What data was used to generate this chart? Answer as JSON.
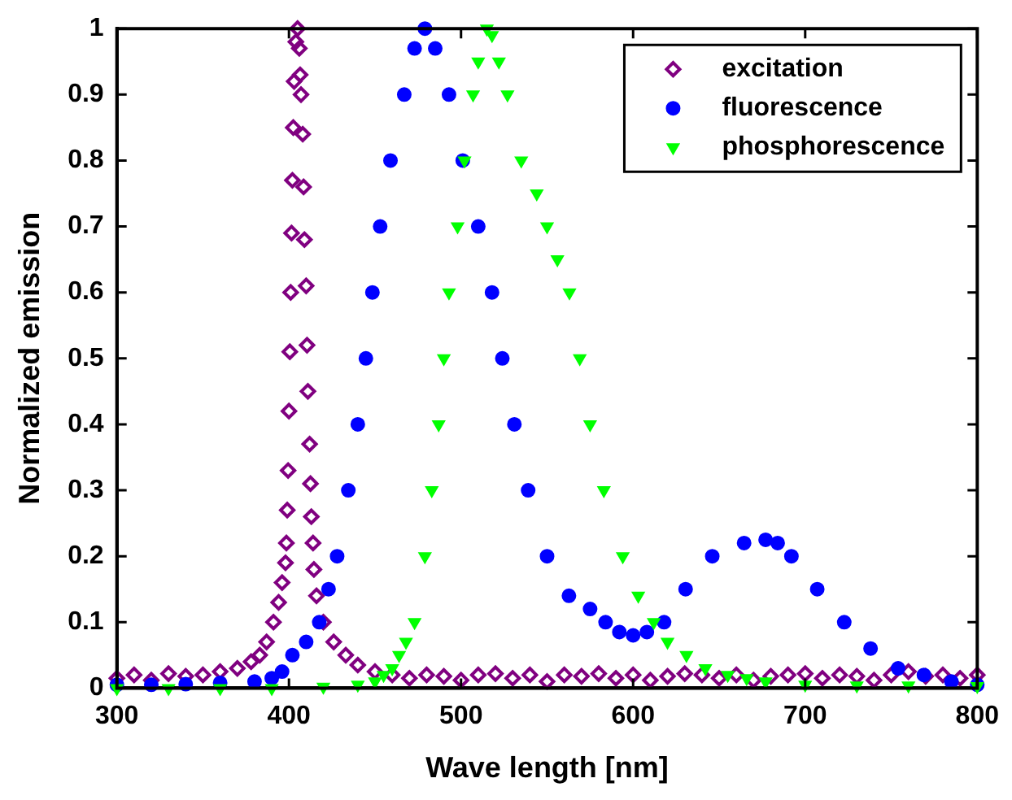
{
  "chart_data": {
    "type": "scatter",
    "xlabel": "Wave length [nm]",
    "ylabel": "Normalized emission",
    "xlim": [
      300,
      800
    ],
    "xticks": [
      300,
      400,
      500,
      600,
      700,
      800
    ],
    "ylim": [
      0,
      1
    ],
    "yticks": [
      0,
      0.1,
      0.2,
      0.3,
      0.4,
      0.5,
      0.6,
      0.7,
      0.8,
      0.9,
      1
    ],
    "grid": false,
    "legend": "top right",
    "series": [
      {
        "name": "excitation",
        "color": "#800080",
        "marker": "diamond",
        "x": [
          300,
          310,
          320,
          330,
          340,
          350,
          360,
          370,
          378,
          383,
          387,
          391,
          394,
          396,
          398,
          398.5,
          399,
          399.5,
          400,
          400.5,
          401,
          401.5,
          402,
          402.5,
          403,
          404,
          405,
          406,
          406.5,
          407,
          408,
          408.5,
          409,
          410,
          410.5,
          411,
          412,
          412.5,
          413,
          414,
          414.5,
          416,
          420,
          426,
          433,
          440,
          450,
          460,
          470,
          480,
          490,
          500,
          510,
          520,
          530,
          540,
          550,
          560,
          570,
          580,
          590,
          600,
          610,
          620,
          630,
          640,
          650,
          660,
          670,
          680,
          690,
          700,
          710,
          720,
          730,
          740,
          750,
          760,
          770,
          780,
          790,
          800
        ],
        "values": [
          0.015,
          0.02,
          0.012,
          0.022,
          0.018,
          0.02,
          0.025,
          0.03,
          0.04,
          0.05,
          0.07,
          0.1,
          0.13,
          0.16,
          0.19,
          0.22,
          0.27,
          0.33,
          0.42,
          0.51,
          0.6,
          0.69,
          0.77,
          0.85,
          0.92,
          0.98,
          1.0,
          0.97,
          0.93,
          0.9,
          0.84,
          0.76,
          0.68,
          0.61,
          0.52,
          0.45,
          0.37,
          0.31,
          0.26,
          0.22,
          0.18,
          0.14,
          0.1,
          0.07,
          0.05,
          0.035,
          0.025,
          0.02,
          0.015,
          0.02,
          0.018,
          0.012,
          0.02,
          0.022,
          0.015,
          0.02,
          0.01,
          0.02,
          0.018,
          0.022,
          0.015,
          0.02,
          0.012,
          0.018,
          0.022,
          0.02,
          0.015,
          0.02,
          0.012,
          0.018,
          0.02,
          0.022,
          0.015,
          0.02,
          0.018,
          0.012,
          0.02,
          0.025,
          0.018,
          0.02,
          0.015,
          0.02
        ]
      },
      {
        "name": "fluorescence",
        "color": "#0000ff",
        "marker": "circle",
        "x": [
          300,
          320,
          340,
          360,
          380,
          390,
          396,
          402,
          410,
          417.6,
          423,
          428,
          434.5,
          440,
          444.7,
          448.5,
          453,
          459,
          467,
          473,
          479,
          485,
          493,
          501,
          510,
          518,
          524,
          531,
          539,
          550,
          562.7,
          575,
          584,
          592,
          600,
          608,
          618,
          630.5,
          646,
          664.5,
          677,
          684,
          692,
          707,
          722.7,
          738,
          754,
          769,
          785,
          800
        ],
        "values": [
          0.005,
          0.005,
          0.006,
          0.008,
          0.01,
          0.015,
          0.025,
          0.05,
          0.07,
          0.1,
          0.15,
          0.2,
          0.3,
          0.4,
          0.5,
          0.6,
          0.7,
          0.8,
          0.9,
          0.97,
          1.0,
          0.97,
          0.9,
          0.8,
          0.7,
          0.6,
          0.5,
          0.4,
          0.3,
          0.2,
          0.14,
          0.12,
          0.1,
          0.085,
          0.08,
          0.085,
          0.1,
          0.15,
          0.2,
          0.22,
          0.225,
          0.22,
          0.2,
          0.15,
          0.1,
          0.06,
          0.03,
          0.02,
          0.01,
          0.005
        ]
      },
      {
        "name": "phosphorescence",
        "color": "#00ff00",
        "marker": "triangle",
        "x": [
          300,
          330,
          360,
          390,
          420,
          440,
          450,
          455,
          460,
          464,
          468,
          473,
          479,
          483,
          487,
          490,
          493,
          498,
          502,
          507,
          510,
          515,
          518,
          522,
          527,
          535,
          544,
          550,
          556,
          563,
          569,
          575,
          583,
          594,
          603,
          612,
          620,
          631,
          642,
          655,
          666,
          677,
          700,
          730,
          760,
          800
        ],
        "values": [
          0.0,
          0.0,
          0.0,
          0.0,
          0.002,
          0.005,
          0.01,
          0.02,
          0.03,
          0.05,
          0.07,
          0.1,
          0.2,
          0.3,
          0.4,
          0.5,
          0.6,
          0.7,
          0.8,
          0.9,
          0.95,
          1.0,
          0.99,
          0.95,
          0.9,
          0.8,
          0.75,
          0.7,
          0.65,
          0.6,
          0.5,
          0.4,
          0.3,
          0.2,
          0.14,
          0.1,
          0.07,
          0.05,
          0.03,
          0.02,
          0.015,
          0.01,
          0.005,
          0.004,
          0.004,
          0.003
        ]
      }
    ]
  }
}
